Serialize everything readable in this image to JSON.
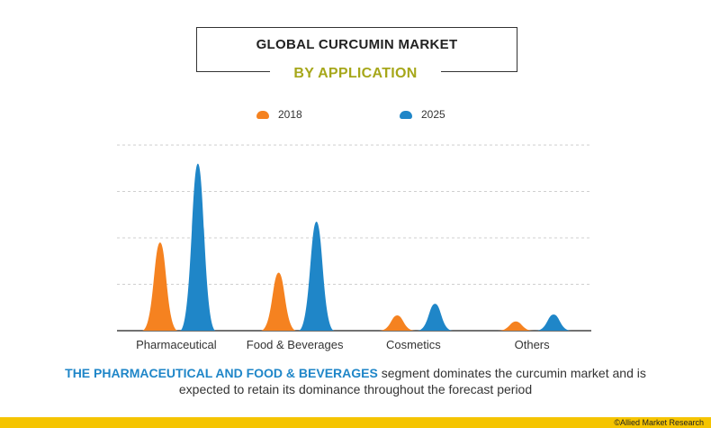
{
  "header": {
    "title": "GLOBAL CURCUMIN MARKET",
    "subtitle": "BY APPLICATION"
  },
  "caption": {
    "highlight": "THE PHARMACEUTICAL AND  FOOD & BEVERAGES",
    "text": " segment dominates the curcumin market and is expected to retain its dominance throughout the forecast period"
  },
  "credit": "©Allied Market Research",
  "colors": {
    "series_2018": "#f58220",
    "series_2025": "#1f86c8",
    "subtitle": "#a6a71a",
    "caption_highlight": "#1f86c8",
    "bottom_bar": "#f5c400",
    "grid": "#cfcfcf"
  },
  "chart_data": {
    "type": "area",
    "categories": [
      "Pharmaceutical",
      "Food & Beverages",
      "Cosmetics",
      "Others"
    ],
    "series": [
      {
        "name": "2018",
        "values": [
          1.9,
          1.25,
          0.33,
          0.2
        ]
      },
      {
        "name": "2025",
        "values": [
          3.6,
          2.35,
          0.58,
          0.35
        ]
      }
    ],
    "ylim": [
      0,
      4
    ],
    "grid": true,
    "legend": "top-center",
    "xlabel": "",
    "ylabel": ""
  }
}
